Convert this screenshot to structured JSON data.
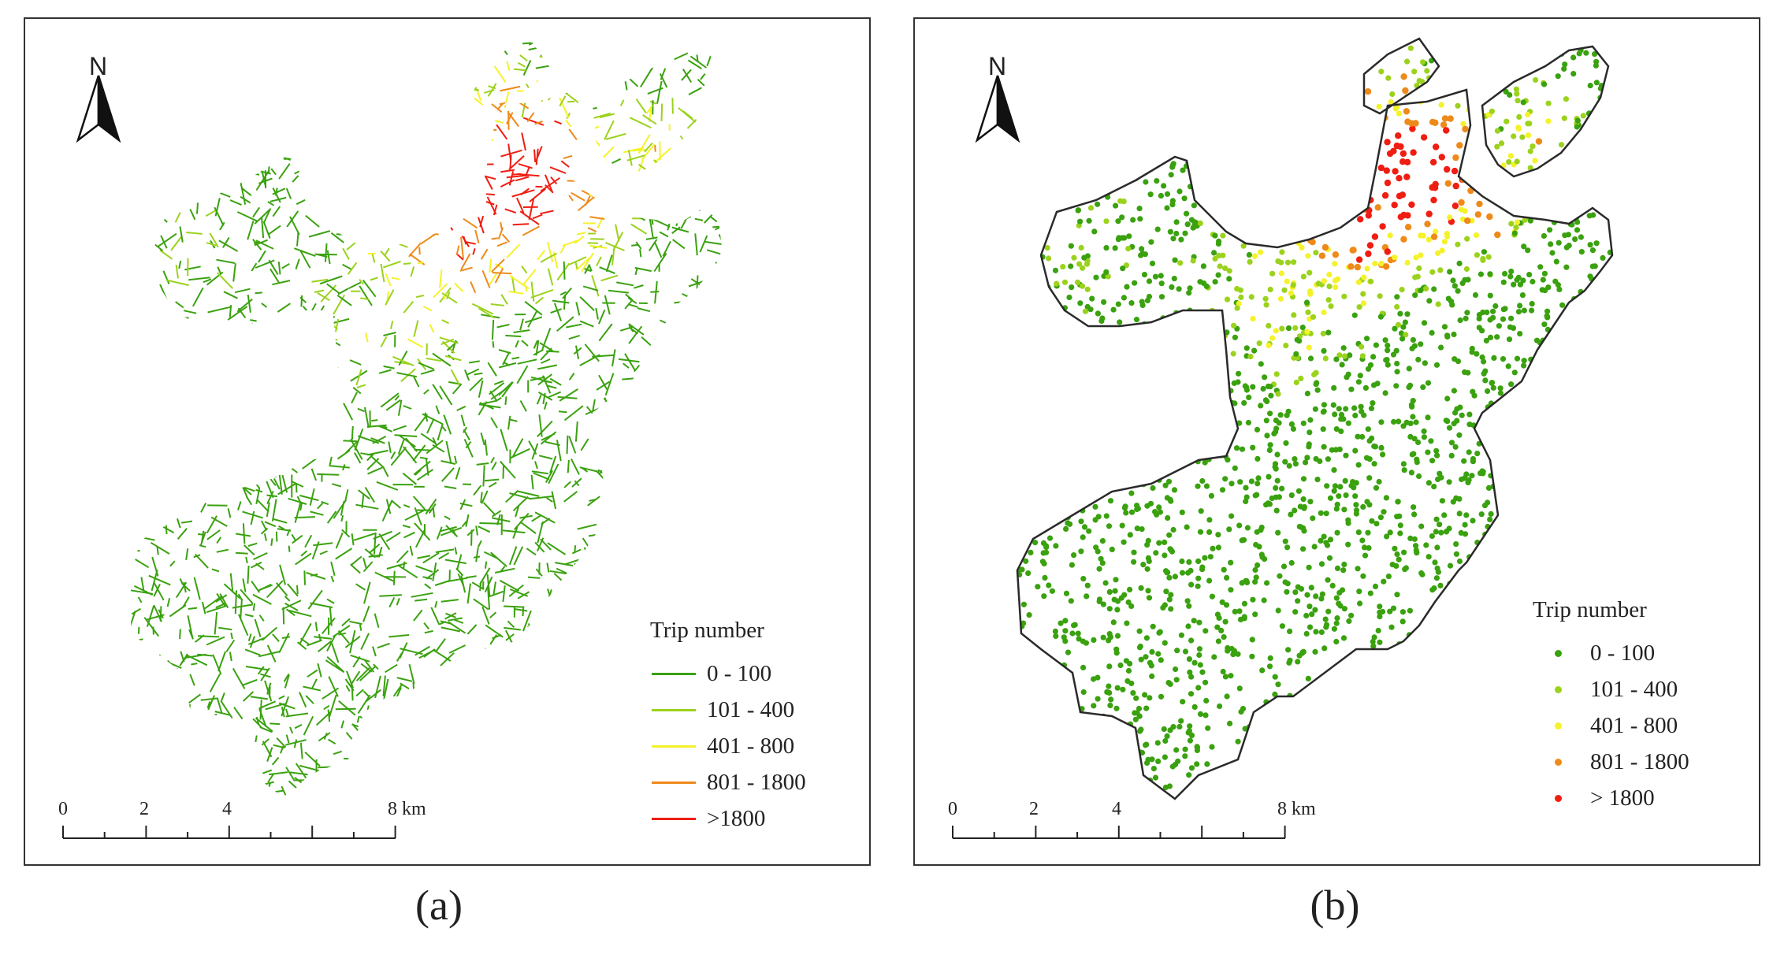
{
  "colors": {
    "class_0_100": "#3aa10f",
    "class_101_400": "#9bd21c",
    "class_401_800": "#f4f22a",
    "class_801_1800": "#ee8a1a",
    "class_gt_1800": "#ef1d12",
    "boundary": "#2a2a2a"
  },
  "panels": [
    {
      "id": "a",
      "caption": "(a)",
      "north_label": "N",
      "legend": {
        "title": "Trip number",
        "items": [
          {
            "label": "0 - 100",
            "color_key": "class_0_100"
          },
          {
            "label": "101 - 400",
            "color_key": "class_101_400"
          },
          {
            "label": "401 - 800",
            "color_key": "class_401_800"
          },
          {
            "label": "801 - 1800",
            "color_key": "class_801_1800"
          },
          {
            "label": ">1800",
            "color_key": "class_gt_1800"
          }
        ]
      },
      "scale_bar": {
        "labels": [
          "0",
          "2",
          "4",
          "8 km"
        ]
      }
    },
    {
      "id": "b",
      "caption": "(b)",
      "north_label": "N",
      "legend": {
        "title": "Trip number",
        "items": [
          {
            "label": "0 - 100",
            "color_key": "class_0_100"
          },
          {
            "label": "101 - 400",
            "color_key": "class_101_400"
          },
          {
            "label": "401 - 800",
            "color_key": "class_401_800"
          },
          {
            "label": "801 - 1800",
            "color_key": "class_801_1800"
          },
          {
            "label": "> 1800",
            "color_key": "class_gt_1800"
          }
        ]
      },
      "scale_bar": {
        "labels": [
          "0",
          "2",
          "4",
          "8 km"
        ]
      }
    }
  ]
}
